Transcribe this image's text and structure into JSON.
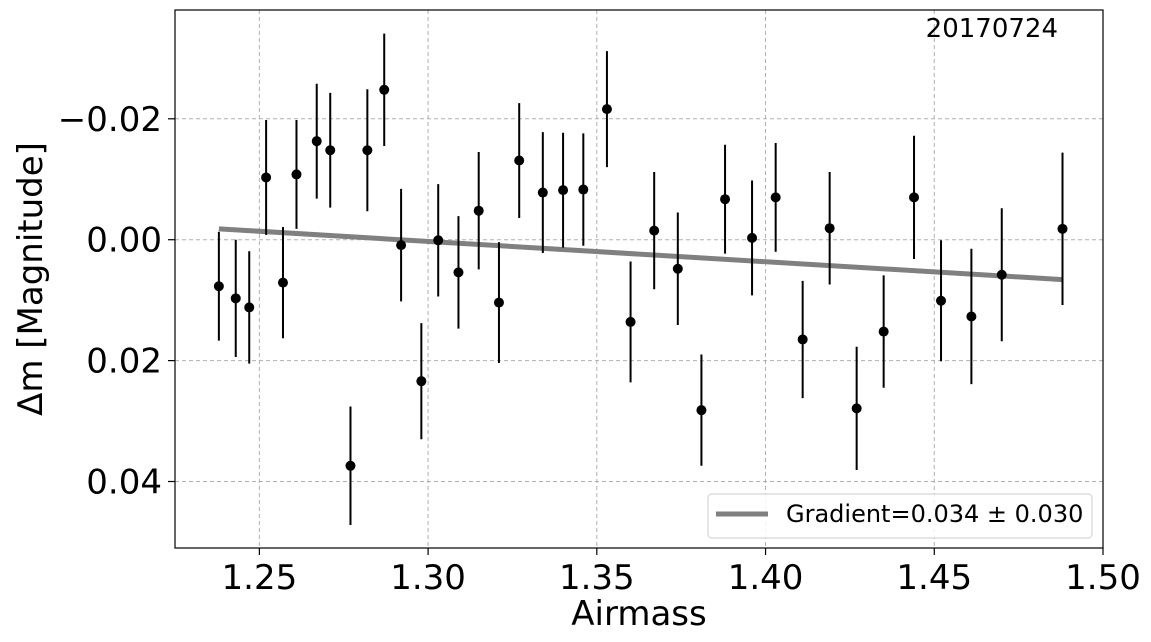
{
  "chart_data": {
    "type": "scatter",
    "title": "",
    "annotation": "20170724",
    "xlabel": "Airmass",
    "ylabel": "Δm [Magnitude]",
    "xlim": [
      1.225,
      1.5
    ],
    "ylim": [
      0.051,
      -0.038
    ],
    "y_inverted": true,
    "grid": true,
    "xticks": [
      1.25,
      1.3,
      1.35,
      1.4,
      1.45,
      1.5
    ],
    "xtick_labels": [
      "1.25",
      "1.30",
      "1.35",
      "1.40",
      "1.45",
      "1.50"
    ],
    "yticks": [
      -0.02,
      0.0,
      0.02,
      0.04
    ],
    "ytick_labels": [
      "−0.02",
      "0.00",
      "0.02",
      "0.04"
    ],
    "series": [
      {
        "type": "errorbar",
        "color": "#000000",
        "x": [
          1.238,
          1.243,
          1.247,
          1.252,
          1.257,
          1.261,
          1.267,
          1.271,
          1.277,
          1.282,
          1.287,
          1.292,
          1.298,
          1.303,
          1.309,
          1.315,
          1.321,
          1.327,
          1.334,
          1.34,
          1.346,
          1.353,
          1.36,
          1.367,
          1.374,
          1.381,
          1.388,
          1.396,
          1.403,
          1.411,
          1.419,
          1.427,
          1.435,
          1.444,
          1.452,
          1.461,
          1.47,
          1.488
        ],
        "y": [
          0.0077,
          0.0097,
          0.0112,
          -0.0103,
          0.0071,
          -0.0108,
          -0.0163,
          -0.0148,
          0.0374,
          -0.0148,
          -0.0248,
          0.0009,
          0.0234,
          0.0001,
          0.0054,
          -0.0048,
          0.0104,
          -0.0131,
          -0.0078,
          -0.0082,
          -0.0083,
          -0.0216,
          0.0136,
          -0.0015,
          0.0048,
          0.0282,
          -0.0067,
          -0.0003,
          -0.007,
          0.0165,
          -0.0019,
          0.0279,
          0.0152,
          -0.007,
          0.0101,
          0.0127,
          0.0058,
          -0.0018
        ],
        "yerr": [
          0.009,
          0.0097,
          0.0093,
          0.0095,
          0.0092,
          0.009,
          0.0095,
          0.0095,
          0.0098,
          0.0101,
          0.0093,
          0.0093,
          0.0096,
          0.0093,
          0.0093,
          0.0097,
          0.01,
          0.0095,
          0.01,
          0.0095,
          0.0093,
          0.0096,
          0.01,
          0.0097,
          0.0093,
          0.0092,
          0.009,
          0.0095,
          0.009,
          0.0097,
          0.0093,
          0.0102,
          0.0093,
          0.0102,
          0.01,
          0.0112,
          0.011,
          0.0126
        ]
      },
      {
        "type": "line",
        "name": "Gradient=0.034 ± 0.030",
        "color": "#808080",
        "x": [
          1.238,
          1.488
        ],
        "y": [
          -0.0018,
          0.0066
        ]
      }
    ],
    "legend": {
      "position": "lower-right",
      "entries": [
        "Gradient=0.034 ± 0.030"
      ]
    }
  }
}
